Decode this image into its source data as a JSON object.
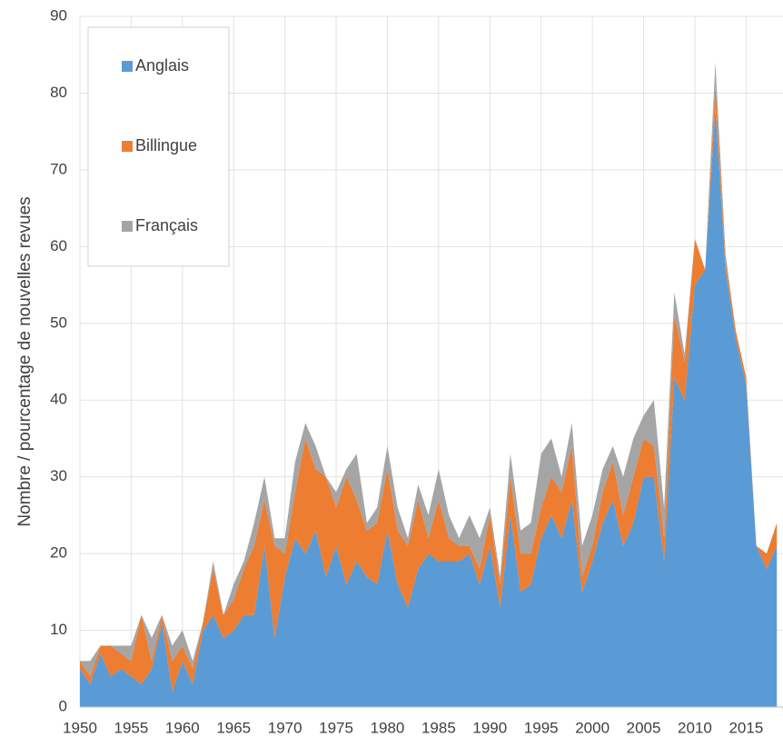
{
  "chart_data": {
    "type": "stacked_area",
    "y_label": "Nombre / pourcentage de nouvelles revues",
    "x": [
      1950,
      1951,
      1952,
      1953,
      1954,
      1955,
      1956,
      1957,
      1958,
      1959,
      1960,
      1961,
      1962,
      1963,
      1964,
      1965,
      1966,
      1967,
      1968,
      1969,
      1970,
      1971,
      1972,
      1973,
      1974,
      1975,
      1976,
      1977,
      1978,
      1979,
      1980,
      1981,
      1982,
      1983,
      1984,
      1985,
      1986,
      1987,
      1988,
      1989,
      1990,
      1991,
      1992,
      1993,
      1994,
      1995,
      1996,
      1997,
      1998,
      1999,
      2000,
      2001,
      2002,
      2003,
      2004,
      2005,
      2006,
      2007,
      2008,
      2009,
      2010,
      2011,
      2012,
      2013,
      2014,
      2015,
      2016,
      2017,
      2018
    ],
    "series": [
      {
        "name": "Anglais",
        "color": "#5b9bd5",
        "values": [
          5,
          3,
          7,
          4,
          5,
          4,
          3,
          5,
          11,
          2,
          6,
          3,
          10,
          12,
          9,
          10,
          12,
          12,
          21,
          9,
          17,
          22,
          20,
          23,
          17,
          21,
          16,
          19,
          17,
          16,
          23,
          16,
          13,
          18,
          20,
          19,
          19,
          19,
          20,
          16,
          21,
          13,
          25,
          15,
          16,
          22,
          25,
          22,
          27,
          15,
          19,
          24,
          27,
          21,
          24,
          30,
          30,
          19,
          43,
          40,
          55,
          57,
          78,
          57,
          48,
          42,
          21,
          18,
          21
        ]
      },
      {
        "name": "Billingue",
        "color": "#ed7d31",
        "values": [
          1,
          1,
          1,
          4,
          2,
          2,
          9,
          1,
          1,
          4,
          2,
          2,
          1,
          6,
          3,
          4,
          6,
          9,
          6,
          12,
          3,
          6,
          15,
          8,
          13,
          5,
          14,
          8,
          6,
          8,
          8,
          7,
          8,
          9,
          2,
          8,
          3,
          2,
          1,
          2,
          4,
          3,
          5,
          5,
          4,
          4,
          5,
          6,
          7,
          2,
          2,
          4,
          5,
          4,
          6,
          5,
          4,
          3,
          8,
          5,
          6,
          0,
          3,
          1,
          1,
          1,
          0,
          2,
          3
        ]
      },
      {
        "name": "Français",
        "color": "#a5a5a5",
        "values": [
          0,
          2,
          0,
          0,
          1,
          2,
          0,
          3,
          0,
          2,
          2,
          1,
          0,
          1,
          0,
          2,
          1,
          3,
          3,
          1,
          2,
          4,
          2,
          3,
          0,
          2,
          1,
          6,
          1,
          2,
          3,
          3,
          1,
          2,
          3,
          4,
          3,
          1,
          4,
          4,
          1,
          1,
          3,
          3,
          4,
          7,
          5,
          2,
          3,
          4,
          4,
          3,
          2,
          5,
          5,
          3,
          6,
          4,
          3,
          1,
          0,
          0,
          3,
          1,
          0,
          0,
          0,
          0,
          0
        ]
      }
    ],
    "xlim": [
      1950,
      2018.6
    ],
    "ylim": [
      0,
      90
    ],
    "xticks": [
      1950,
      1955,
      1960,
      1965,
      1970,
      1975,
      1980,
      1985,
      1990,
      1995,
      2000,
      2005,
      2010,
      2015
    ],
    "yticks": [
      0,
      10,
      20,
      30,
      40,
      50,
      60,
      70,
      80,
      90
    ],
    "grid": true,
    "legend": "upper-left"
  }
}
